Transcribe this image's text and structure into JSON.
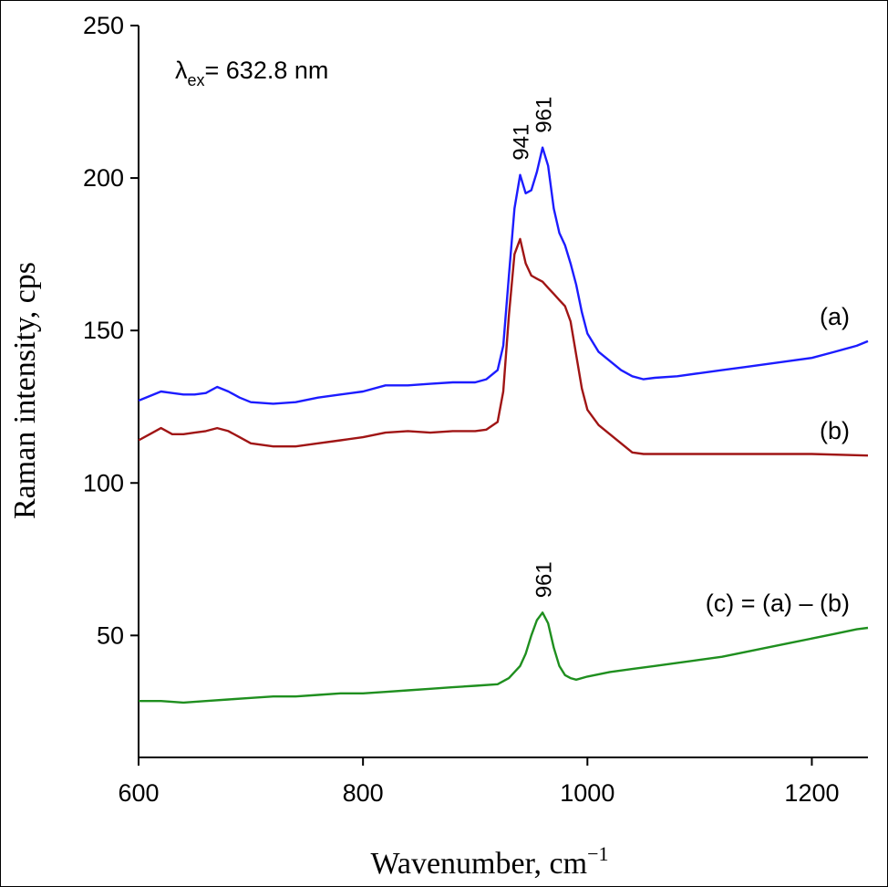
{
  "chart_data": {
    "type": "line",
    "xlabel": "Wavenumber, cm",
    "xlabel_sup": "−1",
    "ylabel": "Raman intensity, cps",
    "xlim": [
      600,
      1250
    ],
    "ylim": [
      10,
      250
    ],
    "xticks": [
      600,
      800,
      1000,
      1200
    ],
    "yticks": [
      50,
      100,
      150,
      200,
      250
    ],
    "grid": false,
    "excitation": {
      "symbol": "λ",
      "subscript": "ex",
      "text": "= 632.8 nm"
    },
    "series": [
      {
        "name": "(a)",
        "color": "#1c1cff",
        "x": [
          600,
          610,
          620,
          630,
          640,
          650,
          660,
          670,
          680,
          690,
          700,
          720,
          740,
          760,
          780,
          800,
          820,
          840,
          860,
          880,
          900,
          910,
          920,
          925,
          930,
          935,
          940,
          945,
          950,
          955,
          960,
          965,
          970,
          975,
          980,
          985,
          990,
          995,
          1000,
          1010,
          1020,
          1030,
          1040,
          1050,
          1060,
          1080,
          1100,
          1120,
          1140,
          1160,
          1180,
          1200,
          1220,
          1240,
          1250
        ],
        "values": [
          127,
          128.5,
          130,
          129.5,
          129,
          129,
          129.5,
          131.5,
          130,
          128,
          126.5,
          126,
          126.5,
          128,
          129,
          130,
          132,
          132,
          132.5,
          133,
          133,
          134,
          137,
          145,
          168,
          190,
          201,
          195,
          196,
          202,
          210,
          204,
          190,
          182,
          178,
          172,
          165,
          156,
          149,
          143,
          140,
          137,
          135,
          134,
          134.5,
          135,
          136,
          137,
          138,
          139,
          140,
          141,
          143,
          145,
          146.5
        ]
      },
      {
        "name": "(b)",
        "color": "#a01515",
        "x": [
          600,
          610,
          620,
          630,
          640,
          650,
          660,
          670,
          680,
          690,
          700,
          720,
          740,
          760,
          780,
          800,
          820,
          840,
          860,
          880,
          900,
          910,
          920,
          925,
          930,
          935,
          940,
          945,
          950,
          955,
          960,
          965,
          970,
          975,
          980,
          985,
          990,
          995,
          1000,
          1010,
          1020,
          1030,
          1040,
          1050,
          1060,
          1080,
          1100,
          1150,
          1200,
          1250
        ],
        "values": [
          114,
          116,
          118,
          116,
          116,
          116.5,
          117,
          118,
          117,
          115,
          113,
          112,
          112,
          113,
          114,
          115,
          116.5,
          117,
          116.5,
          117,
          117,
          117.5,
          120,
          130,
          155,
          175,
          180,
          172,
          168,
          167,
          166,
          164,
          162,
          160,
          158,
          153,
          142,
          131,
          124,
          119,
          116,
          113,
          110,
          109.5,
          109.5,
          109.5,
          109.5,
          109.5,
          109.5,
          109
        ]
      },
      {
        "name": "(c) = (a) – (b)",
        "color": "#1f8f1f",
        "x": [
          600,
          620,
          640,
          660,
          680,
          700,
          720,
          740,
          760,
          780,
          800,
          820,
          840,
          860,
          880,
          900,
          920,
          930,
          940,
          945,
          950,
          955,
          960,
          965,
          970,
          975,
          980,
          985,
          990,
          1000,
          1020,
          1040,
          1060,
          1080,
          1100,
          1120,
          1140,
          1160,
          1180,
          1200,
          1220,
          1240,
          1250
        ],
        "values": [
          28.5,
          28.5,
          28,
          28.5,
          29,
          29.5,
          30,
          30,
          30.5,
          31,
          31,
          31.5,
          32,
          32.5,
          33,
          33.5,
          34,
          36,
          40,
          44,
          50,
          55,
          57.5,
          54,
          46,
          40,
          37,
          36,
          35.5,
          36.5,
          38,
          39,
          40,
          41,
          42,
          43,
          44.5,
          46,
          47.5,
          49,
          50.5,
          52,
          52.5
        ]
      }
    ],
    "peak_labels": [
      {
        "text": "941",
        "x": 941,
        "y": 201,
        "series": 0
      },
      {
        "text": "961",
        "x": 961,
        "y": 210,
        "series": 0
      },
      {
        "text": "961",
        "x": 961,
        "y": 57.5,
        "series": 2
      }
    ]
  }
}
